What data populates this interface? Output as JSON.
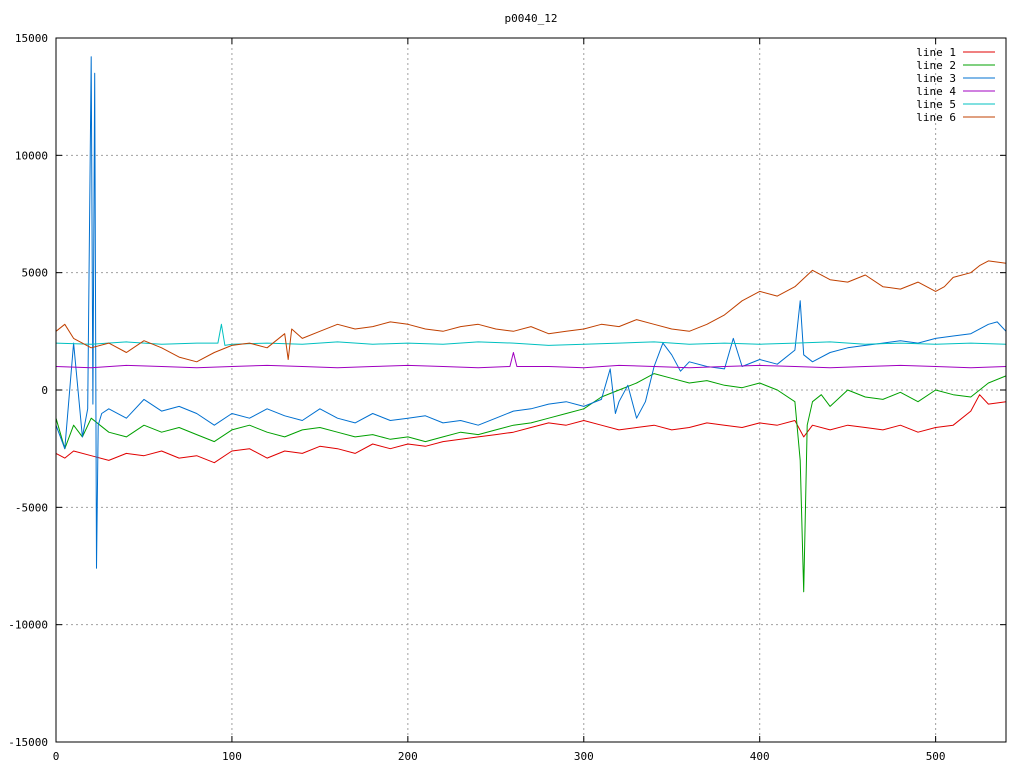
{
  "chart_data": {
    "type": "line",
    "title": "p0040_12",
    "xlabel": "",
    "ylabel": "",
    "xlim": [
      0,
      540
    ],
    "ylim": [
      -15000,
      15000
    ],
    "xticks": [
      0,
      100,
      200,
      300,
      400,
      500
    ],
    "yticks": [
      -15000,
      -10000,
      -5000,
      0,
      5000,
      10000,
      15000
    ],
    "x_tick_labels": [
      "0",
      "100",
      "200",
      "300",
      "400",
      "500"
    ],
    "y_tick_labels": [
      "-15000",
      "-10000",
      "-5000",
      "0",
      "5000",
      "10000",
      "15000"
    ],
    "grid": true,
    "legend_position": "top-right",
    "series": [
      {
        "name": "line 1",
        "color": "#e00000",
        "x": [
          0,
          5,
          10,
          20,
          30,
          40,
          50,
          60,
          70,
          80,
          90,
          100,
          110,
          120,
          130,
          140,
          150,
          160,
          170,
          180,
          190,
          200,
          210,
          220,
          230,
          240,
          250,
          260,
          270,
          280,
          290,
          300,
          310,
          320,
          330,
          340,
          350,
          360,
          370,
          380,
          390,
          400,
          410,
          420,
          425,
          430,
          440,
          450,
          460,
          470,
          480,
          490,
          500,
          510,
          520,
          525,
          530,
          540
        ],
        "y": [
          -2700,
          -2900,
          -2600,
          -2800,
          -3000,
          -2700,
          -2800,
          -2600,
          -2900,
          -2800,
          -3100,
          -2600,
          -2500,
          -2900,
          -2600,
          -2700,
          -2400,
          -2500,
          -2700,
          -2300,
          -2500,
          -2300,
          -2400,
          -2200,
          -2100,
          -2000,
          -1900,
          -1800,
          -1600,
          -1400,
          -1500,
          -1300,
          -1500,
          -1700,
          -1600,
          -1500,
          -1700,
          -1600,
          -1400,
          -1500,
          -1600,
          -1400,
          -1500,
          -1300,
          -2000,
          -1500,
          -1700,
          -1500,
          -1600,
          -1700,
          -1500,
          -1800,
          -1600,
          -1500,
          -900,
          -200,
          -600,
          -500
        ]
      },
      {
        "name": "line 2",
        "color": "#00a000",
        "x": [
          0,
          5,
          10,
          15,
          20,
          30,
          40,
          50,
          60,
          70,
          80,
          90,
          100,
          110,
          120,
          130,
          140,
          150,
          160,
          170,
          180,
          190,
          200,
          210,
          220,
          230,
          240,
          250,
          260,
          270,
          280,
          290,
          300,
          310,
          320,
          330,
          340,
          350,
          360,
          370,
          380,
          390,
          400,
          410,
          420,
          423,
          425,
          427,
          430,
          435,
          440,
          450,
          460,
          470,
          480,
          490,
          500,
          510,
          520,
          530,
          540
        ],
        "y": [
          -1200,
          -2500,
          -1500,
          -2000,
          -1200,
          -1800,
          -2000,
          -1500,
          -1800,
          -1600,
          -1900,
          -2200,
          -1700,
          -1500,
          -1800,
          -2000,
          -1700,
          -1600,
          -1800,
          -2000,
          -1900,
          -2100,
          -2000,
          -2200,
          -2000,
          -1800,
          -1900,
          -1700,
          -1500,
          -1400,
          -1200,
          -1000,
          -800,
          -300,
          0,
          300,
          700,
          500,
          300,
          400,
          200,
          100,
          300,
          0,
          -500,
          -3000,
          -8600,
          -1500,
          -500,
          -200,
          -700,
          0,
          -300,
          -400,
          -100,
          -500,
          0,
          -200,
          -300,
          300,
          600
        ]
      },
      {
        "name": "line 3",
        "color": "#0070d0",
        "x": [
          0,
          5,
          10,
          15,
          18,
          20,
          21,
          22,
          23,
          24,
          26,
          30,
          40,
          50,
          60,
          70,
          80,
          90,
          100,
          110,
          120,
          130,
          140,
          150,
          160,
          170,
          180,
          190,
          200,
          210,
          220,
          230,
          240,
          250,
          260,
          270,
          280,
          290,
          300,
          310,
          315,
          318,
          320,
          325,
          330,
          335,
          340,
          345,
          350,
          355,
          360,
          370,
          380,
          385,
          390,
          400,
          410,
          420,
          423,
          425,
          430,
          440,
          450,
          460,
          470,
          480,
          490,
          500,
          510,
          520,
          530,
          535,
          540
        ],
        "y": [
          -1500,
          -2500,
          2000,
          -2000,
          -800,
          14200,
          -600,
          13500,
          -7600,
          -1500,
          -1000,
          -800,
          -1200,
          -400,
          -900,
          -700,
          -1000,
          -1500,
          -1000,
          -1200,
          -800,
          -1100,
          -1300,
          -800,
          -1200,
          -1400,
          -1000,
          -1300,
          -1200,
          -1100,
          -1400,
          -1300,
          -1500,
          -1200,
          -900,
          -800,
          -600,
          -500,
          -700,
          -400,
          900,
          -1000,
          -500,
          200,
          -1200,
          -500,
          1000,
          2000,
          1500,
          800,
          1200,
          1000,
          900,
          2200,
          1000,
          1300,
          1100,
          1700,
          3800,
          1500,
          1200,
          1600,
          1800,
          1900,
          2000,
          2100,
          2000,
          2200,
          2300,
          2400,
          2800,
          2900,
          2500
        ]
      },
      {
        "name": "line 4",
        "color": "#a000c0",
        "x": [
          0,
          20,
          40,
          60,
          80,
          100,
          120,
          140,
          160,
          180,
          200,
          220,
          240,
          258,
          260,
          262,
          280,
          300,
          320,
          340,
          360,
          380,
          400,
          420,
          440,
          460,
          480,
          500,
          520,
          540
        ],
        "y": [
          1000,
          950,
          1050,
          1000,
          950,
          1000,
          1050,
          1000,
          950,
          1000,
          1050,
          1000,
          950,
          1000,
          1600,
          1000,
          1000,
          950,
          1050,
          1000,
          950,
          1000,
          1050,
          1000,
          950,
          1000,
          1050,
          1000,
          950,
          1000
        ]
      },
      {
        "name": "line 5",
        "color": "#00c0c0",
        "x": [
          0,
          20,
          40,
          60,
          80,
          92,
          94,
          96,
          100,
          120,
          140,
          160,
          180,
          200,
          220,
          240,
          260,
          280,
          300,
          320,
          340,
          360,
          380,
          400,
          420,
          440,
          460,
          480,
          500,
          520,
          540
        ],
        "y": [
          2000,
          1950,
          2050,
          1950,
          2000,
          2000,
          2800,
          1900,
          1950,
          2000,
          1950,
          2050,
          1950,
          2000,
          1950,
          2050,
          2000,
          1900,
          1950,
          2000,
          2050,
          1950,
          2000,
          1950,
          2000,
          2050,
          1950,
          2000,
          1950,
          2000,
          1950
        ]
      },
      {
        "name": "line 6",
        "color": "#c04000",
        "x": [
          0,
          5,
          10,
          20,
          30,
          40,
          50,
          60,
          70,
          80,
          90,
          100,
          110,
          120,
          130,
          132,
          134,
          140,
          150,
          160,
          170,
          180,
          190,
          200,
          210,
          220,
          230,
          240,
          250,
          260,
          270,
          280,
          290,
          300,
          310,
          320,
          330,
          340,
          350,
          360,
          370,
          380,
          390,
          400,
          410,
          420,
          430,
          440,
          450,
          460,
          470,
          480,
          490,
          500,
          505,
          510,
          520,
          525,
          530,
          540
        ],
        "y": [
          2500,
          2800,
          2200,
          1800,
          2000,
          1600,
          2100,
          1800,
          1400,
          1200,
          1600,
          1900,
          2000,
          1800,
          2400,
          1300,
          2600,
          2200,
          2500,
          2800,
          2600,
          2700,
          2900,
          2800,
          2600,
          2500,
          2700,
          2800,
          2600,
          2500,
          2700,
          2400,
          2500,
          2600,
          2800,
          2700,
          3000,
          2800,
          2600,
          2500,
          2800,
          3200,
          3800,
          4200,
          4000,
          4400,
          5100,
          4700,
          4600,
          4900,
          4400,
          4300,
          4600,
          4200,
          4400,
          4800,
          5000,
          5300,
          5500,
          5400
        ]
      }
    ]
  }
}
